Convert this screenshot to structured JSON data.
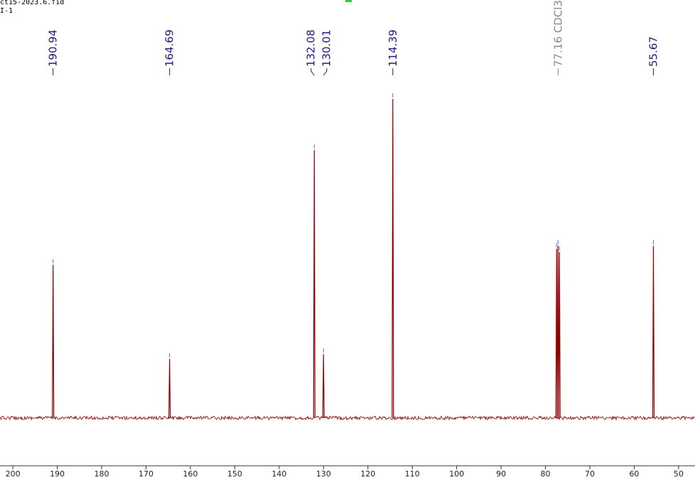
{
  "header": {
    "file_name": "ct15-2023.6.fid",
    "sample": "I-1"
  },
  "chart_data": {
    "type": "nmr",
    "x": [
      190.94,
      164.69,
      132.08,
      130.01,
      114.39,
      77.48,
      77.16,
      76.84,
      55.67
    ],
    "values": [
      48,
      18.5,
      84,
      20,
      100,
      53,
      54,
      52,
      54
    ],
    "x_labels": [
      "190.94",
      "164.69",
      "132.08",
      "130.01",
      "114.39",
      null,
      "77.16 CDCl3",
      null,
      "55.67"
    ],
    "label_colors": [
      "#1a1a80",
      "#1a1a80",
      "#1a1a80",
      "#1a1a80",
      "#1a1a80",
      null,
      "#8a8a8a",
      null,
      "#1a1a80"
    ],
    "color": "#8b0000",
    "xlim": [
      202.9,
      46.3
    ],
    "ylim": [
      -15,
      131
    ],
    "xticks": [
      200,
      190,
      180,
      170,
      160,
      150,
      140,
      130,
      120,
      110,
      100,
      90,
      80,
      70,
      60,
      50
    ]
  }
}
